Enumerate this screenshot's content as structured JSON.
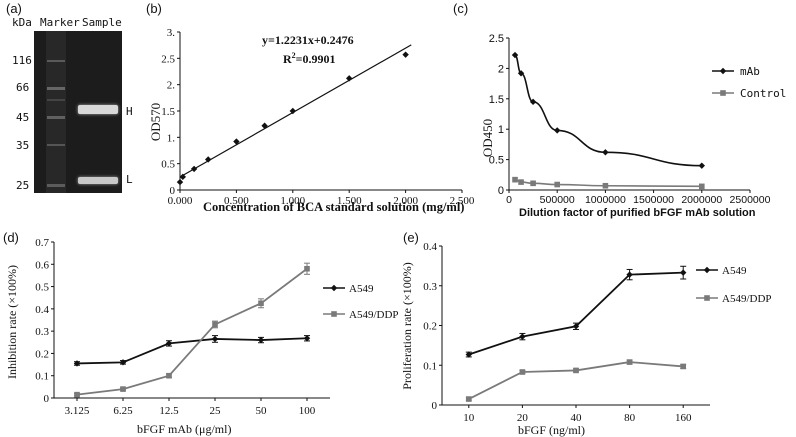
{
  "panels": {
    "a": {
      "letter": "(a)",
      "unit_label": "kDa",
      "lane_labels": [
        "Marker",
        "Sample"
      ],
      "marker_sizes": [
        "116",
        "66",
        "45",
        "35",
        "25"
      ],
      "band_labels": [
        "H",
        "L"
      ]
    }
  },
  "colors": {
    "series_dark": "#111111",
    "series_gray": "#7a7a7a",
    "gel_bg": "#1c1c1c"
  },
  "chart_data": [
    {
      "id": "b",
      "letter": "(b)",
      "type": "scatter",
      "title": "",
      "xlabel": "Concentration of BCA standard solution (mg/ml)",
      "ylabel": "OD570",
      "xlim": [
        0,
        2.5
      ],
      "ylim": [
        0,
        3.0
      ],
      "xticks": [
        "0.000",
        "0.500",
        "1.000",
        "1.500",
        "2.000",
        "2.500"
      ],
      "yticks": [
        "0",
        "0.5",
        "1.",
        "1.5",
        "2.",
        "2.5",
        "3."
      ],
      "x": [
        0,
        0.025,
        0.125,
        0.25,
        0.5,
        0.75,
        1.0,
        1.5,
        2.0
      ],
      "y": [
        0.15,
        0.25,
        0.4,
        0.58,
        0.92,
        1.22,
        1.5,
        2.12,
        2.57
      ],
      "fit": {
        "slope": 1.2231,
        "intercept": 0.2476
      },
      "equation": "y=1.2231x+0.2476",
      "r2_label": "R",
      "r2_sup": "2",
      "r2_value": "=0.9901"
    },
    {
      "id": "c",
      "letter": "(c)",
      "type": "line",
      "xlabel": "Dilution factor of purified bFGF mAb solution",
      "ylabel": "OD450",
      "xlim": [
        0,
        2500000
      ],
      "ylim": [
        0,
        2.5
      ],
      "xticks": [
        "0",
        "500000",
        "1000000",
        "1500000",
        "2000000",
        "2500000"
      ],
      "yticks": [
        "0",
        "0.5",
        "1",
        "1.5",
        "2",
        "2.5"
      ],
      "series": [
        {
          "name": "mAb",
          "x": [
            62500,
            125000,
            250000,
            500000,
            1000000,
            2000000
          ],
          "values": [
            2.22,
            1.92,
            1.45,
            0.98,
            0.62,
            0.4
          ]
        },
        {
          "name": "Control",
          "x": [
            62500,
            125000,
            250000,
            500000,
            1000000,
            2000000
          ],
          "values": [
            0.17,
            0.13,
            0.11,
            0.09,
            0.07,
            0.06
          ]
        }
      ]
    },
    {
      "id": "d",
      "letter": "(d)",
      "type": "line",
      "xlabel": "bFGF mAb  (μg/ml)",
      "ylabel": "Inhibition rate (×100%)",
      "ylim": [
        0,
        0.7
      ],
      "categories": [
        "3.125",
        "6.25",
        "12.5",
        "25",
        "50",
        "100"
      ],
      "yticks": [
        "0",
        "0.1",
        "0.2",
        "0.3",
        "0.4",
        "0.5",
        "0.6",
        "0.7"
      ],
      "series": [
        {
          "name": "A549",
          "values": [
            0.155,
            0.16,
            0.245,
            0.265,
            0.26,
            0.268
          ],
          "errors": [
            0.008,
            0.008,
            0.012,
            0.015,
            0.012,
            0.012
          ]
        },
        {
          "name": "A549/DDP",
          "values": [
            0.015,
            0.04,
            0.1,
            0.33,
            0.425,
            0.58
          ],
          "errors": [
            0.005,
            0.005,
            0.008,
            0.015,
            0.02,
            0.025
          ]
        }
      ]
    },
    {
      "id": "e",
      "letter": "(e)",
      "type": "line",
      "xlabel": "bFGF (ng/ml)",
      "ylabel": "Proliferation rate (×100%)",
      "ylim": [
        0,
        0.4
      ],
      "categories": [
        "10",
        "20",
        "40",
        "80",
        "160"
      ],
      "yticks": [
        "0",
        "0.1",
        "0.2",
        "0.3",
        "0.4"
      ],
      "series": [
        {
          "name": "A549",
          "values": [
            0.127,
            0.172,
            0.198,
            0.328,
            0.333
          ],
          "errors": [
            0.006,
            0.008,
            0.008,
            0.013,
            0.016
          ]
        },
        {
          "name": "A549/DDP",
          "values": [
            0.015,
            0.083,
            0.087,
            0.108,
            0.097
          ],
          "errors": [
            0.003,
            0.004,
            0.004,
            0.005,
            0.005
          ]
        }
      ]
    }
  ]
}
